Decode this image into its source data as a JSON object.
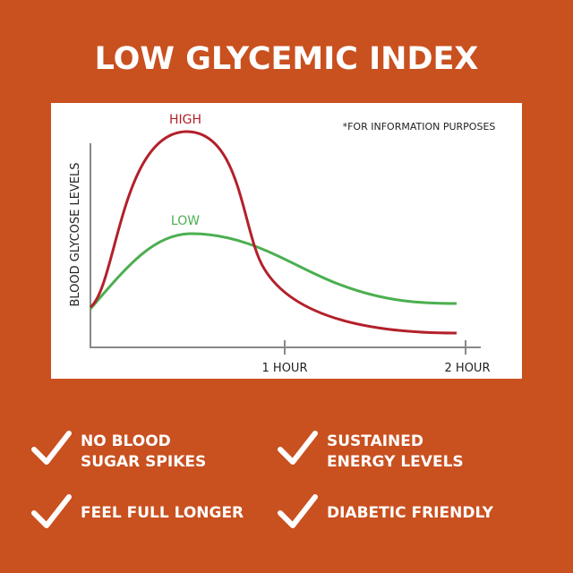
{
  "header": {
    "title": "LOW GLYCEMIC INDEX"
  },
  "chart": {
    "note": "*FOR INFORMATION PURPOSES",
    "y_label": "BLOOD GLYCOSE LEVELS",
    "series_labels": [
      "HIGH",
      "LOW"
    ],
    "x_labels": [
      "1 HOUR",
      "2 HOUR"
    ]
  },
  "benefits": [
    [
      "NO BLOOD",
      "SUGAR SPIKES"
    ],
    [
      "SUSTAINED",
      "ENERGY LEVELS"
    ],
    [
      "FEEL FULL LONGER"
    ],
    [
      "DIABETIC FRIENDLY"
    ]
  ]
}
